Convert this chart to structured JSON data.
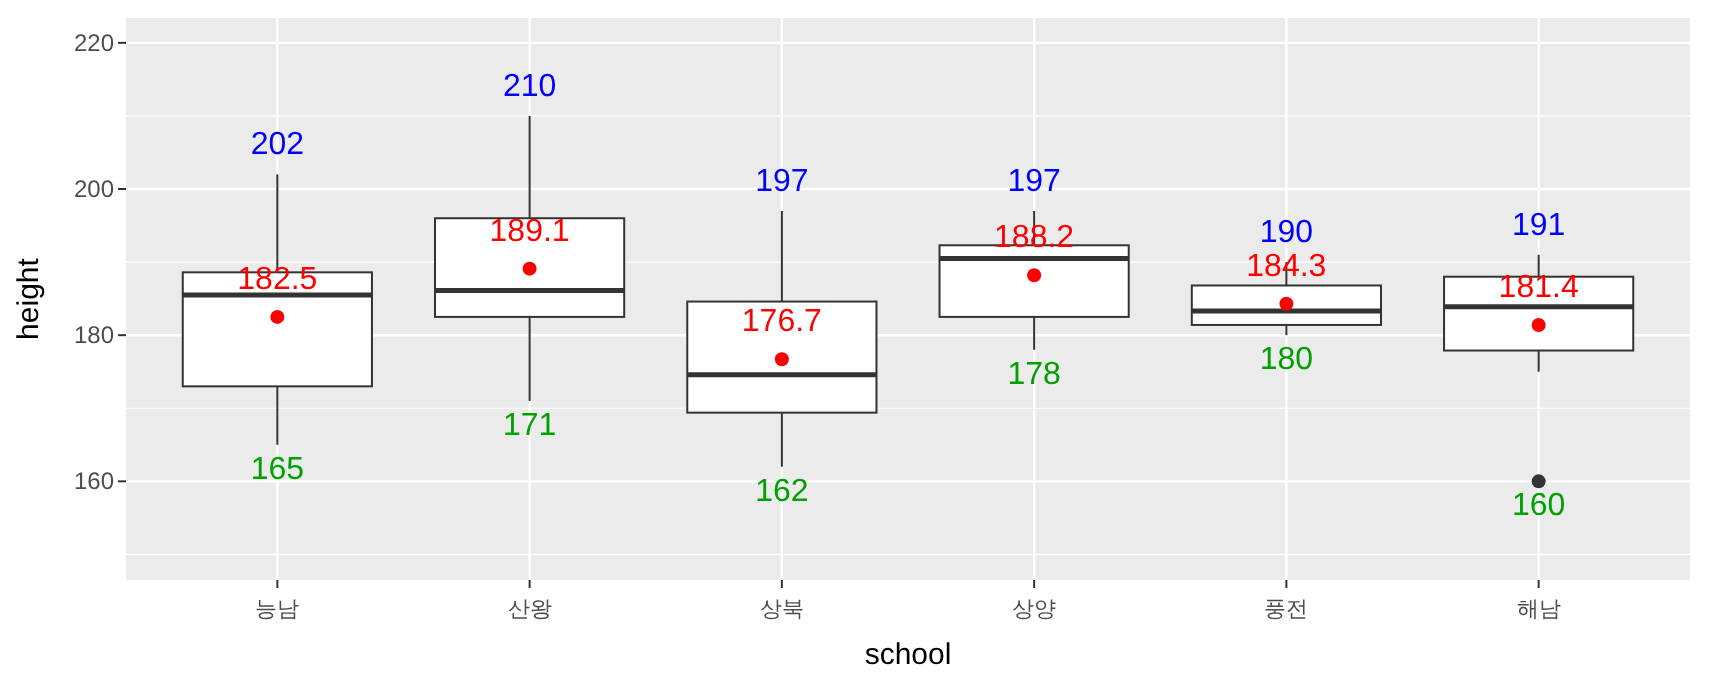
{
  "chart_data": {
    "type": "box",
    "xlabel": "school",
    "ylabel": "height",
    "categories": [
      "능남",
      "산왕",
      "상북",
      "상양",
      "풍전",
      "해남"
    ],
    "boxes": [
      {
        "low": 165,
        "q1": 173.0,
        "median": 185.5,
        "q3": 188.6,
        "high": 202
      },
      {
        "low": 171,
        "q1": 182.5,
        "median": 186.1,
        "q3": 196.0,
        "high": 210
      },
      {
        "low": 162,
        "q1": 169.4,
        "median": 174.6,
        "q3": 184.6,
        "high": 197
      },
      {
        "low": 178,
        "q1": 182.5,
        "median": 190.5,
        "q3": 192.3,
        "high": 197
      },
      {
        "low": 180,
        "q1": 181.4,
        "median": 183.3,
        "q3": 186.8,
        "high": 190
      },
      {
        "low": 175,
        "q1": 177.9,
        "median": 183.9,
        "q3": 188.0,
        "high": 191
      }
    ],
    "ylim": [
      146.5,
      223.4
    ],
    "yticks": [
      160,
      180,
      200,
      220
    ],
    "grid": true,
    "series": [
      {
        "type": "scatter",
        "color": "#ff0000",
        "marker": "circle",
        "x": [
          "능남",
          "산왕",
          "상북",
          "상양",
          "풍전",
          "해남"
        ],
        "values": [
          182.5,
          189.1,
          176.7,
          188.2,
          184.3,
          181.4
        ],
        "value_labels": [
          "182.5",
          "189.1",
          "176.7",
          "188.2",
          "184.3",
          "181.4"
        ]
      },
      {
        "type": "scatter",
        "color": "#333333",
        "marker": "circle",
        "x": [
          "해남"
        ],
        "values": [
          160
        ]
      }
    ],
    "annotations": [
      {
        "text": "202",
        "x": "능남",
        "y": 202
      },
      {
        "text": "210",
        "x": "산왕",
        "y": 210
      },
      {
        "text": "197",
        "x": "상북",
        "y": 197
      },
      {
        "text": "197",
        "x": "상양",
        "y": 197
      },
      {
        "text": "190",
        "x": "풍전",
        "y": 190
      },
      {
        "text": "191",
        "x": "해남",
        "y": 191
      },
      {
        "text": "165",
        "x": "능남",
        "y": 165
      },
      {
        "text": "171",
        "x": "산왕",
        "y": 171
      },
      {
        "text": "162",
        "x": "상북",
        "y": 162
      },
      {
        "text": "178",
        "x": "상양",
        "y": 178
      },
      {
        "text": "180",
        "x": "풍전",
        "y": 180
      },
      {
        "text": "160",
        "x": "해남",
        "y": 160
      }
    ]
  }
}
